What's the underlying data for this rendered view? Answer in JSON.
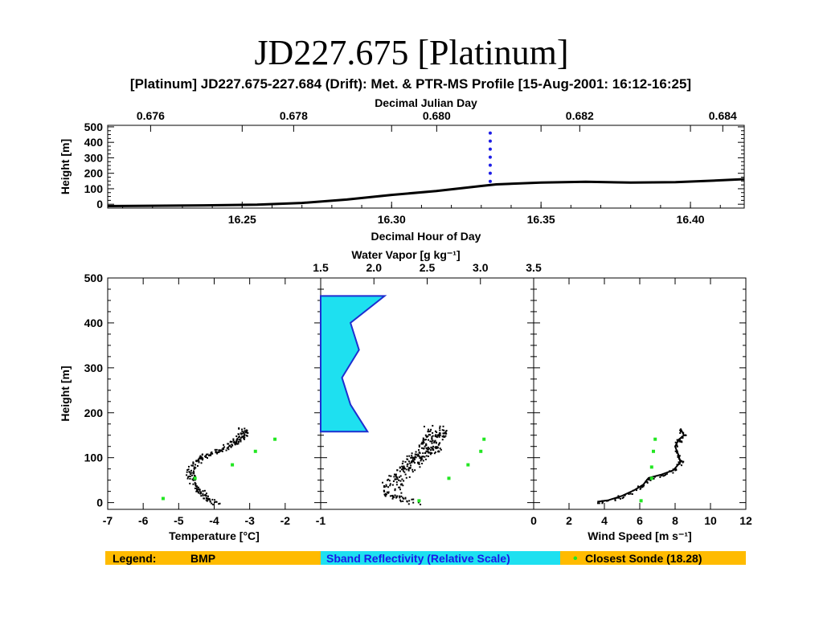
{
  "slide_title": "JD227.675 [Platinum]",
  "figure_title": "[Platinum] JD227.675-227.684 (Drift): Met. & PTR-MS Profile [15-Aug-2001: 16:12-16:25]",
  "colors": {
    "profile": "#000000",
    "sonde": "#22e622",
    "reflectivity_fill": "#1ee0f0",
    "reflectivity_edge": "#1e2fd0",
    "drift_marker": "#1e1ee6",
    "legend_bar": "#ffbb00",
    "legend_refl_bg": "#1ee0f0",
    "legend_refl_text": "#1a1ae6"
  },
  "chart_data": [
    {
      "id": "time_series",
      "type": "line",
      "xlabel_top": "Decimal Julian Day",
      "xticks_top": [
        "0.676",
        "0.678",
        "0.680",
        "0.682",
        "0.684"
      ],
      "xlim_top": [
        0.6754,
        0.6843
      ],
      "xlabel": "Decimal Hour of Day",
      "xticks": [
        "16.25",
        "16.30",
        "16.35",
        "16.40"
      ],
      "xlim": [
        16.205,
        16.418
      ],
      "ylabel": "Height [m]",
      "yticks": [
        "0",
        "100",
        "200",
        "300",
        "400",
        "500"
      ],
      "ylim": [
        -25,
        510
      ],
      "series": [
        {
          "x": [
            16.205,
            16.22,
            16.24,
            16.255,
            16.27,
            16.285,
            16.3,
            16.315,
            16.33,
            16.335,
            16.35,
            16.365,
            16.38,
            16.395,
            16.405,
            16.418
          ],
          "y": [
            -12,
            -10,
            -7,
            -3,
            8,
            30,
            60,
            85,
            118,
            128,
            140,
            145,
            140,
            143,
            150,
            162
          ]
        }
      ],
      "marker_x": 16.333,
      "marker_y": [
        148,
        460
      ]
    },
    {
      "id": "temperature",
      "type": "scatter",
      "xlabel": "Temperature [°C]",
      "xticks": [
        "-7",
        "-6",
        "-5",
        "-4",
        "-3",
        "-2",
        "-1"
      ],
      "xlim": [
        -7,
        -1
      ],
      "ylabel": "Height [m]",
      "yticks": [
        "0",
        "100",
        "200",
        "300",
        "400",
        "500"
      ],
      "ylim": [
        -15,
        500
      ],
      "bmp": {
        "x": [
          -3.95,
          -4.2,
          -4.4,
          -4.6,
          -4.7,
          -4.6,
          -4.4,
          -4.15,
          -3.9,
          -3.6,
          -3.4,
          -3.3,
          -3.15,
          -3.25
        ],
        "y": [
          2,
          10,
          25,
          45,
          65,
          85,
          100,
          110,
          118,
          128,
          137,
          145,
          155,
          168
        ]
      },
      "sonde": {
        "x": [
          -5.45,
          -4.55,
          -3.5,
          -2.85,
          -2.3
        ],
        "y": [
          10,
          55,
          85,
          115,
          142
        ]
      }
    },
    {
      "id": "water_vapor",
      "type": "scatter",
      "xlabel_top": "Water Vapor [g kg⁻¹]",
      "xticks_top": [
        "1.5",
        "2.0",
        "2.5",
        "3.0",
        "3.5"
      ],
      "xlim": [
        1.5,
        3.5
      ],
      "ylim": [
        -15,
        500
      ],
      "bmp": {
        "x": [
          2.35,
          2.2,
          2.15,
          2.2,
          2.3,
          2.35,
          2.4,
          2.45,
          2.55,
          2.5,
          2.55,
          2.6,
          2.55
        ],
        "y": [
          2,
          15,
          35,
          55,
          75,
          90,
          100,
          110,
          120,
          130,
          145,
          155,
          168
        ]
      },
      "sonde": {
        "x": [
          2.42,
          2.7,
          2.88,
          3.0,
          3.03
        ],
        "y": [
          5,
          55,
          85,
          115,
          142
        ]
      },
      "reflectivity": {
        "x": [
          0.0,
          0.22,
          0.14,
          0.1,
          0.18,
          0.14,
          0.3,
          0.0
        ],
        "y": [
          158,
          158,
          218,
          278,
          340,
          400,
          460,
          460
        ]
      }
    },
    {
      "id": "wind_speed",
      "type": "scatter",
      "xlabel": "Wind Speed [m s⁻¹]",
      "xticks": [
        "0",
        "2",
        "4",
        "6",
        "8",
        "10",
        "12"
      ],
      "xlim": [
        0,
        12
      ],
      "ylim": [
        -15,
        500
      ],
      "bmp": {
        "x": [
          3.6,
          4.2,
          5.0,
          5.7,
          6.2,
          6.5,
          7.2,
          7.9,
          8.3,
          8.2,
          8.0,
          8.2,
          8.5,
          8.3
        ],
        "y": [
          2,
          5,
          15,
          28,
          40,
          55,
          62,
          72,
          90,
          105,
          125,
          140,
          150,
          165
        ]
      },
      "sonde": {
        "x": [
          6.05,
          6.65,
          6.65,
          6.75,
          6.85
        ],
        "y": [
          5,
          55,
          80,
          115,
          142
        ]
      }
    }
  ],
  "legend": {
    "label": "Legend:",
    "bmp": "BMP",
    "reflectivity": "Sband Reflectivity (Relative Scale)",
    "sonde_marker": "•",
    "sonde": "Closest Sonde (18.28)"
  }
}
